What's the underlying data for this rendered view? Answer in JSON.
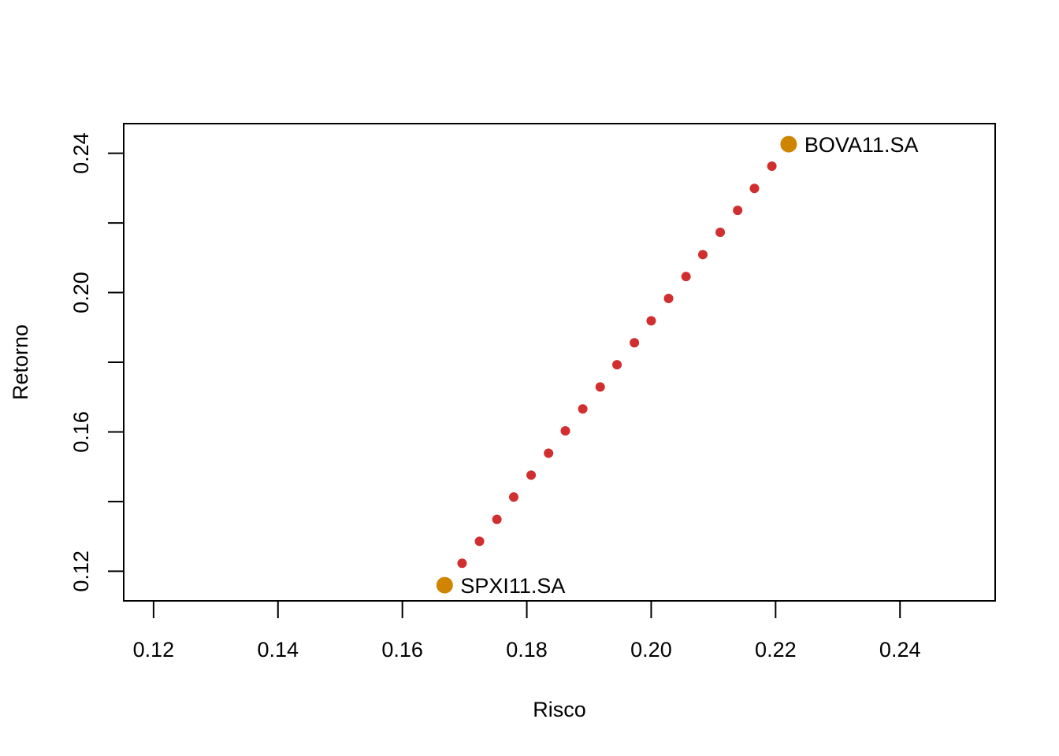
{
  "chart_data": {
    "type": "scatter",
    "title": "",
    "xlabel": "Risco",
    "ylabel": "Retorno",
    "xlim": [
      0.1152,
      0.2553
    ],
    "ylim": [
      0.1115,
      0.2485
    ],
    "x_ticks": [
      0.12,
      0.14,
      0.16,
      0.18,
      0.2,
      0.22,
      0.24
    ],
    "x_tick_labels": [
      "0.12",
      "0.14",
      "0.16",
      "0.18",
      "0.20",
      "0.22",
      "0.24"
    ],
    "y_ticks": [
      0.12,
      0.14,
      0.16,
      0.18,
      0.2,
      0.22,
      0.24
    ],
    "y_tick_labels": [
      "0.12",
      "",
      "0.16",
      "",
      "0.20",
      "",
      "0.24"
    ],
    "grid": false,
    "series": [
      {
        "color": "#d12e2f",
        "marker": "small-dot",
        "points": [
          {
            "x": 0.1696,
            "y": 0.1223
          },
          {
            "x": 0.1724,
            "y": 0.1286
          },
          {
            "x": 0.1752,
            "y": 0.1349
          },
          {
            "x": 0.1779,
            "y": 0.1413
          },
          {
            "x": 0.1807,
            "y": 0.1476
          },
          {
            "x": 0.1835,
            "y": 0.1539
          },
          {
            "x": 0.1862,
            "y": 0.1603
          },
          {
            "x": 0.189,
            "y": 0.1666
          },
          {
            "x": 0.1918,
            "y": 0.1729
          },
          {
            "x": 0.1945,
            "y": 0.1793
          },
          {
            "x": 0.1973,
            "y": 0.1856
          },
          {
            "x": 0.2,
            "y": 0.1919
          },
          {
            "x": 0.2028,
            "y": 0.1983
          },
          {
            "x": 0.2056,
            "y": 0.2046
          },
          {
            "x": 0.2083,
            "y": 0.2109
          },
          {
            "x": 0.2111,
            "y": 0.2173
          },
          {
            "x": 0.2139,
            "y": 0.2236
          },
          {
            "x": 0.2166,
            "y": 0.2299
          },
          {
            "x": 0.2194,
            "y": 0.2363
          }
        ]
      },
      {
        "color": "#cf8500",
        "marker": "large-dot",
        "points": [
          {
            "x": 0.1668,
            "y": 0.116,
            "label": "SPXI11.SA"
          },
          {
            "x": 0.2221,
            "y": 0.2426,
            "label": "BOVA11.SA"
          }
        ]
      }
    ]
  }
}
